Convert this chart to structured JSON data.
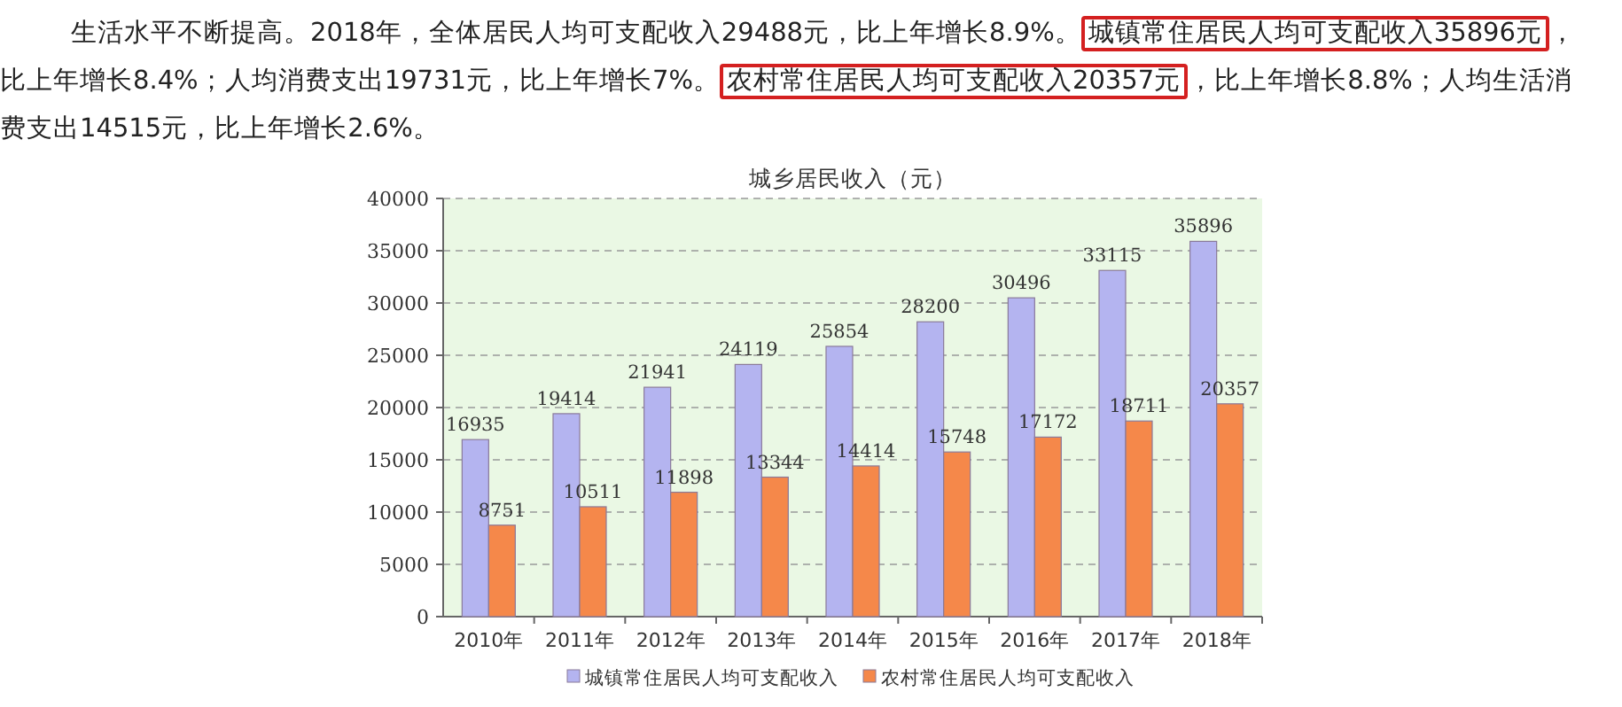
{
  "chart_data": {
    "type": "bar",
    "title": "城乡居民收入（元）",
    "annotations": [
      "生活水平不断提高。2018年，全体居民人均可支配收入29488元，比上年增长8.9%。",
      "城镇常住居民人均可支配收入35896元",
      "，比上年增长8.4%；人均消费支出19731元，比上年增长7%。",
      "农村常住居民人均可支配收入20357元",
      "，比上年增长8.8%；人均生活消费支出14515元，比上年增长2.6%。"
    ],
    "categories": [
      "2010年",
      "2011年",
      "2012年",
      "2013年",
      "2014年",
      "2015年",
      "2016年",
      "2017年",
      "2018年"
    ],
    "series": [
      {
        "name": "城镇常住居民人均可支配收入",
        "color": "#b4b4f0",
        "values": [
          16935,
          19414,
          21941,
          24119,
          25854,
          28200,
          30496,
          33115,
          35896
        ]
      },
      {
        "name": "农村常住居民人均可支配收入",
        "color": "#f5884a",
        "values": [
          8751,
          10511,
          11898,
          13344,
          14414,
          15748,
          17172,
          18711,
          20357
        ]
      }
    ],
    "ylim": [
      0,
      40000
    ],
    "yticks": [
      0,
      5000,
      10000,
      15000,
      20000,
      25000,
      30000,
      35000,
      40000
    ],
    "grid": "y",
    "legend": "bottom",
    "data_labels": true
  }
}
